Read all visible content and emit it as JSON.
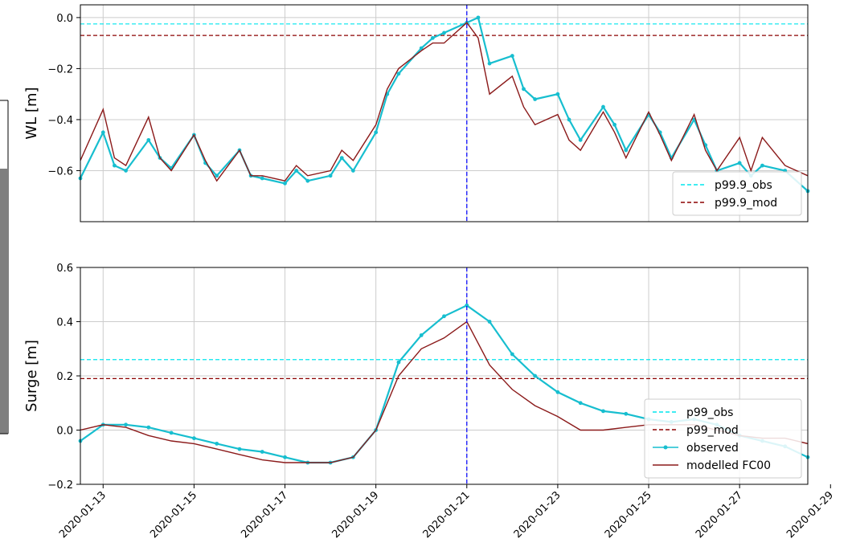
{
  "colors": {
    "observed": "#17becf",
    "modelled": "#8b1a1a",
    "p_obs": "#00e5ee",
    "p_mod": "#8b0000",
    "peak_line": "#0000ff",
    "grid": "#cccccc"
  },
  "chart_data": [
    {
      "type": "line",
      "ylabel": "WL [m]",
      "ylim": [
        -0.8,
        0.05
      ],
      "yticks": [
        0.0,
        -0.2,
        -0.4,
        -0.6
      ],
      "ytick_labels": [
        "0.0",
        "−0.2",
        "−0.4",
        "−0.6"
      ],
      "xlim": [
        "2020-01-12T12:00",
        "2020-01-28T12:00"
      ],
      "grid": true,
      "legend_location": "lower-right",
      "hlines": [
        {
          "name": "p99.9_obs",
          "y": -0.025,
          "color": "#00e5ee",
          "style": "dashed"
        },
        {
          "name": "p99.9_mod",
          "y": -0.07,
          "color": "#8b0000",
          "style": "dashed"
        }
      ],
      "vline": {
        "x": "2020-01-21T00:00",
        "color": "#0000ff",
        "style": "dashed"
      },
      "series": [
        {
          "name": "observed",
          "color": "#17becf",
          "marker": "*",
          "x": [
            "2020-01-12T12:00",
            "2020-01-13T00:00",
            "2020-01-13T06:00",
            "2020-01-13T12:00",
            "2020-01-14T00:00",
            "2020-01-14T06:00",
            "2020-01-14T12:00",
            "2020-01-15T00:00",
            "2020-01-15T06:00",
            "2020-01-15T12:00",
            "2020-01-16T00:00",
            "2020-01-16T06:00",
            "2020-01-16T12:00",
            "2020-01-17T00:00",
            "2020-01-17T06:00",
            "2020-01-17T12:00",
            "2020-01-18T00:00",
            "2020-01-18T06:00",
            "2020-01-18T12:00",
            "2020-01-19T00:00",
            "2020-01-19T06:00",
            "2020-01-19T12:00",
            "2020-01-20T00:00",
            "2020-01-20T06:00",
            "2020-01-20T12:00",
            "2020-01-21T00:00",
            "2020-01-21T06:00",
            "2020-01-21T12:00",
            "2020-01-22T00:00",
            "2020-01-22T06:00",
            "2020-01-22T12:00",
            "2020-01-23T00:00",
            "2020-01-23T06:00",
            "2020-01-23T12:00",
            "2020-01-24T00:00",
            "2020-01-24T06:00",
            "2020-01-24T12:00",
            "2020-01-25T00:00",
            "2020-01-25T06:00",
            "2020-01-25T12:00",
            "2020-01-26T00:00",
            "2020-01-26T06:00",
            "2020-01-26T12:00",
            "2020-01-27T00:00",
            "2020-01-27T06:00",
            "2020-01-27T12:00",
            "2020-01-28T00:00",
            "2020-01-28T12:00"
          ],
          "y": [
            -0.63,
            -0.45,
            -0.58,
            -0.6,
            -0.48,
            -0.55,
            -0.59,
            -0.46,
            -0.57,
            -0.62,
            -0.52,
            -0.62,
            -0.63,
            -0.65,
            -0.6,
            -0.64,
            -0.62,
            -0.55,
            -0.6,
            -0.45,
            -0.3,
            -0.22,
            -0.12,
            -0.08,
            -0.06,
            -0.02,
            0.0,
            -0.18,
            -0.15,
            -0.28,
            -0.32,
            -0.3,
            -0.4,
            -0.48,
            -0.35,
            -0.42,
            -0.52,
            -0.38,
            -0.45,
            -0.55,
            -0.4,
            -0.5,
            -0.6,
            -0.57,
            -0.62,
            -0.58,
            -0.6,
            -0.68
          ]
        },
        {
          "name": "modelled FC00",
          "color": "#8b1a1a",
          "marker": "none",
          "x": [
            "2020-01-12T12:00",
            "2020-01-13T00:00",
            "2020-01-13T06:00",
            "2020-01-13T12:00",
            "2020-01-14T00:00",
            "2020-01-14T06:00",
            "2020-01-14T12:00",
            "2020-01-15T00:00",
            "2020-01-15T06:00",
            "2020-01-15T12:00",
            "2020-01-16T00:00",
            "2020-01-16T06:00",
            "2020-01-16T12:00",
            "2020-01-17T00:00",
            "2020-01-17T06:00",
            "2020-01-17T12:00",
            "2020-01-18T00:00",
            "2020-01-18T06:00",
            "2020-01-18T12:00",
            "2020-01-19T00:00",
            "2020-01-19T06:00",
            "2020-01-19T12:00",
            "2020-01-20T00:00",
            "2020-01-20T06:00",
            "2020-01-20T12:00",
            "2020-01-21T00:00",
            "2020-01-21T06:00",
            "2020-01-21T12:00",
            "2020-01-22T00:00",
            "2020-01-22T06:00",
            "2020-01-22T12:00",
            "2020-01-23T00:00",
            "2020-01-23T06:00",
            "2020-01-23T12:00",
            "2020-01-24T00:00",
            "2020-01-24T06:00",
            "2020-01-24T12:00",
            "2020-01-25T00:00",
            "2020-01-25T06:00",
            "2020-01-25T12:00",
            "2020-01-26T00:00",
            "2020-01-26T06:00",
            "2020-01-26T12:00",
            "2020-01-27T00:00",
            "2020-01-27T06:00",
            "2020-01-27T12:00",
            "2020-01-28T00:00",
            "2020-01-28T12:00"
          ],
          "y": [
            -0.56,
            -0.36,
            -0.55,
            -0.58,
            -0.39,
            -0.55,
            -0.6,
            -0.46,
            -0.56,
            -0.64,
            -0.52,
            -0.62,
            -0.62,
            -0.64,
            -0.58,
            -0.62,
            -0.6,
            -0.52,
            -0.56,
            -0.42,
            -0.28,
            -0.2,
            -0.13,
            -0.1,
            -0.1,
            -0.02,
            -0.08,
            -0.3,
            -0.23,
            -0.35,
            -0.42,
            -0.38,
            -0.48,
            -0.52,
            -0.37,
            -0.45,
            -0.55,
            -0.37,
            -0.46,
            -0.56,
            -0.38,
            -0.52,
            -0.6,
            -0.47,
            -0.6,
            -0.47,
            -0.58,
            -0.62
          ]
        }
      ],
      "legend": [
        "p99.9_obs",
        "p99.9_mod"
      ]
    },
    {
      "type": "line",
      "ylabel": "Surge [m]",
      "ylim": [
        -0.2,
        0.6
      ],
      "yticks": [
        -0.2,
        0.0,
        0.2,
        0.4,
        0.6
      ],
      "ytick_labels": [
        "−0.2",
        "0.0",
        "0.2",
        "0.4",
        "0.6"
      ],
      "xlim": [
        "2020-01-12T12:00",
        "2020-01-28T12:00"
      ],
      "xticks": [
        "2020-01-13",
        "2020-01-15",
        "2020-01-17",
        "2020-01-19",
        "2020-01-21",
        "2020-01-23",
        "2020-01-25",
        "2020-01-27",
        "2020-01-29"
      ],
      "grid": true,
      "legend_location": "lower-right",
      "hlines": [
        {
          "name": "p99_obs",
          "y": 0.26,
          "color": "#00e5ee",
          "style": "dashed"
        },
        {
          "name": "p99_mod",
          "y": 0.19,
          "color": "#8b0000",
          "style": "dashed"
        }
      ],
      "vline": {
        "x": "2020-01-21T00:00",
        "color": "#0000ff",
        "style": "dashed"
      },
      "series": [
        {
          "name": "observed",
          "color": "#17becf",
          "marker": "*",
          "x": [
            "2020-01-12T12:00",
            "2020-01-13T00:00",
            "2020-01-13T12:00",
            "2020-01-14T00:00",
            "2020-01-14T12:00",
            "2020-01-15T00:00",
            "2020-01-15T12:00",
            "2020-01-16T00:00",
            "2020-01-16T12:00",
            "2020-01-17T00:00",
            "2020-01-17T12:00",
            "2020-01-18T00:00",
            "2020-01-18T12:00",
            "2020-01-19T00:00",
            "2020-01-19T12:00",
            "2020-01-20T00:00",
            "2020-01-20T12:00",
            "2020-01-21T00:00",
            "2020-01-21T12:00",
            "2020-01-22T00:00",
            "2020-01-22T12:00",
            "2020-01-23T00:00",
            "2020-01-23T12:00",
            "2020-01-24T00:00",
            "2020-01-24T12:00",
            "2020-01-25T00:00",
            "2020-01-25T12:00",
            "2020-01-26T00:00",
            "2020-01-26T12:00",
            "2020-01-27T00:00",
            "2020-01-27T12:00",
            "2020-01-28T00:00",
            "2020-01-28T12:00"
          ],
          "y": [
            -0.04,
            0.02,
            0.02,
            0.01,
            -0.01,
            -0.03,
            -0.05,
            -0.07,
            -0.08,
            -0.1,
            -0.12,
            -0.12,
            -0.1,
            0.0,
            0.25,
            0.35,
            0.42,
            0.46,
            0.4,
            0.28,
            0.2,
            0.14,
            0.1,
            0.07,
            0.06,
            0.04,
            0.03,
            0.04,
            0.02,
            -0.02,
            -0.04,
            -0.06,
            -0.1
          ]
        },
        {
          "name": "modelled FC00",
          "color": "#8b1a1a",
          "marker": "none",
          "x": [
            "2020-01-12T12:00",
            "2020-01-13T00:00",
            "2020-01-13T12:00",
            "2020-01-14T00:00",
            "2020-01-14T12:00",
            "2020-01-15T00:00",
            "2020-01-15T12:00",
            "2020-01-16T00:00",
            "2020-01-16T12:00",
            "2020-01-17T00:00",
            "2020-01-17T12:00",
            "2020-01-18T00:00",
            "2020-01-18T12:00",
            "2020-01-19T00:00",
            "2020-01-19T12:00",
            "2020-01-20T00:00",
            "2020-01-20T12:00",
            "2020-01-21T00:00",
            "2020-01-21T12:00",
            "2020-01-22T00:00",
            "2020-01-22T12:00",
            "2020-01-23T00:00",
            "2020-01-23T12:00",
            "2020-01-24T00:00",
            "2020-01-24T12:00",
            "2020-01-25T00:00",
            "2020-01-25T12:00",
            "2020-01-26T00:00",
            "2020-01-26T12:00",
            "2020-01-27T00:00",
            "2020-01-27T12:00",
            "2020-01-28T00:00",
            "2020-01-28T12:00"
          ],
          "y": [
            0.0,
            0.02,
            0.01,
            -0.02,
            -0.04,
            -0.05,
            -0.07,
            -0.09,
            -0.11,
            -0.12,
            -0.12,
            -0.12,
            -0.1,
            0.0,
            0.2,
            0.3,
            0.34,
            0.4,
            0.24,
            0.15,
            0.09,
            0.05,
            0.0,
            0.0,
            0.01,
            0.02,
            0.02,
            0.02,
            0.0,
            -0.02,
            -0.03,
            -0.03,
            -0.05
          ]
        }
      ],
      "legend": [
        "p99_obs",
        "p99_mod",
        "observed",
        "modelled FC00"
      ]
    }
  ]
}
